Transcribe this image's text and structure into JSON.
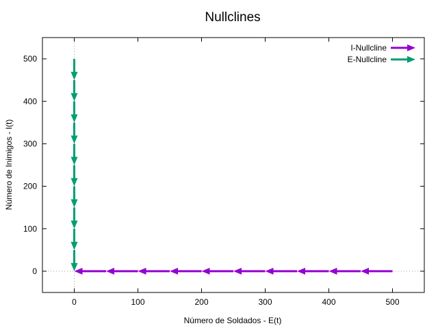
{
  "chart_data": {
    "type": "line",
    "title": "Nullclines",
    "xlabel": "Número de Soldados - E(t)",
    "ylabel": "Número de Inimigos - I(t)",
    "xlim": [
      -50,
      550
    ],
    "ylim": [
      -50,
      550
    ],
    "xticks": [
      0,
      100,
      200,
      300,
      400,
      500
    ],
    "yticks": [
      0,
      100,
      200,
      300,
      400,
      500
    ],
    "xtick_labels": [
      "0",
      "100",
      "200",
      "300",
      "400",
      "500"
    ],
    "ytick_labels": [
      "0",
      "100",
      "200",
      "300",
      "400",
      "500"
    ],
    "zero_axes": "dotted",
    "grid": false,
    "legend_position": "top-right",
    "series": [
      {
        "name": "I-Nullcline",
        "color": "#9400d3",
        "x": [
          500,
          450,
          400,
          350,
          300,
          250,
          200,
          150,
          100,
          50,
          0
        ],
        "y": [
          0,
          0,
          0,
          0,
          0,
          0,
          0,
          0,
          0,
          0,
          0
        ],
        "marker": "arrow"
      },
      {
        "name": "E-Nullcline",
        "color": "#009e73",
        "x": [
          0,
          0,
          0,
          0,
          0,
          0,
          0,
          0,
          0,
          0,
          0
        ],
        "y": [
          500,
          450,
          400,
          350,
          300,
          250,
          200,
          150,
          100,
          50,
          0
        ],
        "marker": "arrow"
      }
    ]
  }
}
